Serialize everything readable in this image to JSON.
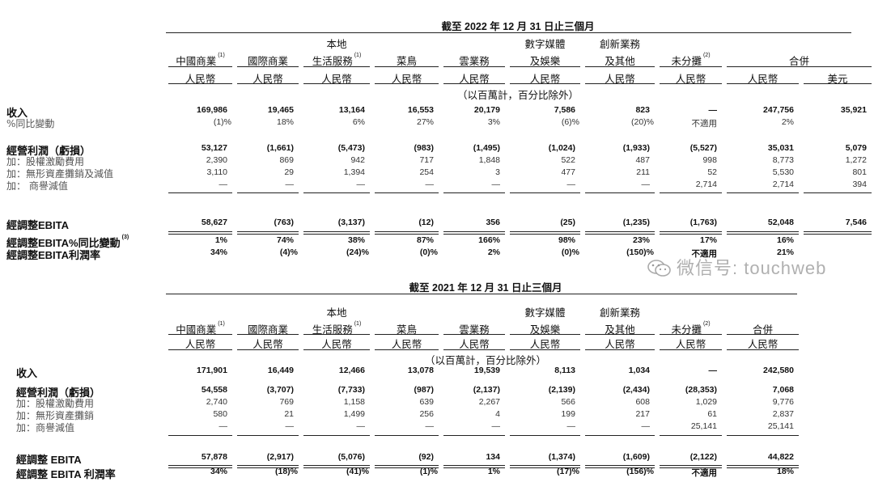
{
  "tables": [
    {
      "title": "截至 2022 年 12 月 31 日止三個月",
      "unit_note": "（以百萬計，百分比除外）",
      "columns": [
        {
          "line1": "",
          "line2": "中國商業",
          "sup": "(1)",
          "currency": "人民幣"
        },
        {
          "line1": "",
          "line2": "國際商業",
          "sup": "",
          "currency": "人民幣"
        },
        {
          "line1": "本地",
          "line2": "生活服務",
          "sup": "(1)",
          "currency": "人民幣"
        },
        {
          "line1": "",
          "line2": "菜鳥",
          "sup": "",
          "currency": "人民幣"
        },
        {
          "line1": "",
          "line2": "雲業務",
          "sup": "",
          "currency": "人民幣"
        },
        {
          "line1": "數字媒體",
          "line2": "及娛樂",
          "sup": "",
          "currency": "人民幣"
        },
        {
          "line1": "創新業務",
          "line2": "及其他",
          "sup": "",
          "currency": "人民幣"
        },
        {
          "line1": "",
          "line2": "未分攤",
          "sup": "(2)",
          "currency": "人民幣"
        }
      ],
      "combined": {
        "label": "合併",
        "currencies": [
          "人民幣",
          "美元"
        ]
      },
      "rows": [
        {
          "label": "收入",
          "style": "main",
          "values": [
            "169,986",
            "19,465",
            "13,164",
            "16,553",
            "20,179",
            "7,586",
            "823",
            "—",
            "247,756",
            "35,921"
          ]
        },
        {
          "label": "%同比變動",
          "style": "sub",
          "values": [
            "(1)%",
            "18%",
            "6%",
            "27%",
            "3%",
            "(6)%",
            "(20)%",
            "不適用",
            "2%",
            ""
          ]
        },
        {
          "label": "經營利潤（虧損）",
          "style": "main",
          "values": [
            "53,127",
            "(1,661)",
            "(5,473)",
            "(983)",
            "(1,495)",
            "(1,024)",
            "(1,933)",
            "(5,527)",
            "35,031",
            "5,079"
          ]
        },
        {
          "label": "加：股權激勵費用",
          "style": "sub",
          "values": [
            "2,390",
            "869",
            "942",
            "717",
            "1,848",
            "522",
            "487",
            "998",
            "8,773",
            "1,272"
          ]
        },
        {
          "label": "加：無形資產攤銷及減值",
          "style": "sub",
          "values": [
            "3,110",
            "29",
            "1,394",
            "254",
            "3",
            "477",
            "211",
            "52",
            "5,530",
            "801"
          ]
        },
        {
          "label": "加： 商譽減值",
          "style": "sub",
          "values": [
            "—",
            "—",
            "—",
            "—",
            "—",
            "—",
            "—",
            "2,714",
            "2,714",
            "394"
          ]
        },
        {
          "label": "經調整EBITA",
          "style": "main",
          "values": [
            "58,627",
            "(763)",
            "(3,137)",
            "(12)",
            "356",
            "(25)",
            "(1,235)",
            "(1,763)",
            "52,048",
            "7,546"
          ]
        },
        {
          "label": "經調整EBITA%同比變動",
          "sup": "(3)",
          "style": "main",
          "values": [
            "1%",
            "74%",
            "38%",
            "87%",
            "166%",
            "98%",
            "23%",
            "17%",
            "16%",
            ""
          ]
        },
        {
          "label": "經調整EBITA利潤率",
          "style": "main",
          "values": [
            "34%",
            "(4)%",
            "(24)%",
            "(0)%",
            "2%",
            "(0)%",
            "(150)%",
            "不適用",
            "21%",
            ""
          ]
        }
      ]
    },
    {
      "title": "截至 2021 年 12 月 31 日止三個月",
      "unit_note": "（以百萬計，百分比除外）",
      "columns": [
        {
          "line1": "",
          "line2": "中國商業",
          "sup": "(1)",
          "currency": "人民幣"
        },
        {
          "line1": "",
          "line2": "國際商業",
          "sup": "",
          "currency": "人民幣"
        },
        {
          "line1": "本地",
          "line2": "生活服務",
          "sup": "(1)",
          "currency": "人民幣"
        },
        {
          "line1": "",
          "line2": "菜鳥",
          "sup": "",
          "currency": "人民幣"
        },
        {
          "line1": "",
          "line2": "雲業務",
          "sup": "",
          "currency": "人民幣"
        },
        {
          "line1": "數字媒體",
          "line2": "及娛樂",
          "sup": "",
          "currency": "人民幣"
        },
        {
          "line1": "創新業務",
          "line2": "及其他",
          "sup": "",
          "currency": "人民幣"
        },
        {
          "line1": "",
          "line2": "未分攤",
          "sup": "(2)",
          "currency": "人民幣"
        }
      ],
      "combined": {
        "label": "合併",
        "currencies": [
          "人民幣"
        ]
      },
      "rows": [
        {
          "label": "收入",
          "style": "main",
          "values": [
            "171,901",
            "16,449",
            "12,466",
            "13,078",
            "19,539",
            "8,113",
            "1,034",
            "—",
            "242,580"
          ]
        },
        {
          "label": "經營利潤（虧損）",
          "style": "main",
          "values": [
            "54,558",
            "(3,707)",
            "(7,733)",
            "(987)",
            "(2,137)",
            "(2,139)",
            "(2,434)",
            "(28,353)",
            "7,068"
          ]
        },
        {
          "label": "加：股權激勵費用",
          "style": "sub",
          "values": [
            "2,740",
            "769",
            "1,158",
            "639",
            "2,267",
            "566",
            "608",
            "1,029",
            "9,776"
          ]
        },
        {
          "label": "加：無形資產攤銷",
          "style": "sub",
          "values": [
            "580",
            "21",
            "1,499",
            "256",
            "4",
            "199",
            "217",
            "61",
            "2,837"
          ]
        },
        {
          "label": "加：商譽減值",
          "style": "sub",
          "values": [
            "—",
            "—",
            "—",
            "—",
            "—",
            "—",
            "—",
            "25,141",
            "25,141"
          ]
        },
        {
          "label": "經調整 EBITA",
          "style": "main",
          "values": [
            "57,878",
            "(2,917)",
            "(5,076)",
            "(92)",
            "134",
            "(1,374)",
            "(1,609)",
            "(2,122)",
            "44,822"
          ]
        },
        {
          "label": "經調整 EBITA 利潤率",
          "style": "main",
          "values": [
            "34%",
            "(18)%",
            "(41)%",
            "(1)%",
            "1%",
            "(17)%",
            "(156)%",
            "不適用",
            "18%"
          ]
        }
      ]
    }
  ],
  "watermark": {
    "text": "微信号: touchweb",
    "icon": "wechat-icon"
  }
}
